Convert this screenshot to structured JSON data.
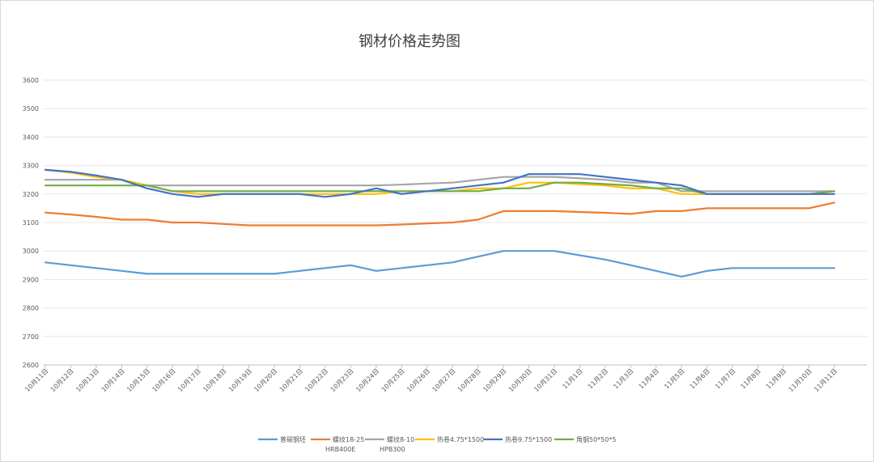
{
  "chart_data": {
    "type": "line",
    "title": "钢材价格走势图",
    "xlabel": "",
    "ylabel": "",
    "ylim": [
      2600,
      3600
    ],
    "yticks": [
      2600,
      2700,
      2800,
      2900,
      3000,
      3100,
      3200,
      3300,
      3400,
      3500,
      3600
    ],
    "grid": true,
    "legend_position": "bottom",
    "categories": [
      "10月11日",
      "10月12日",
      "10月13日",
      "10月14日",
      "10月15日",
      "10月16日",
      "10月17日",
      "10月18日",
      "10月19日",
      "10月20日",
      "10月21日",
      "10月22日",
      "10月23日",
      "10月24日",
      "10月25日",
      "10月26日",
      "10月27日",
      "10月28日",
      "10月29日",
      "10月30日",
      "10月31日",
      "11月1日",
      "11月2日",
      "11月3日",
      "11月4日",
      "11月5日",
      "11月6日",
      "11月7日",
      "11月8日",
      "11月9日",
      "11月10日",
      "11月11日"
    ],
    "series": [
      {
        "name": "普碳钢坯",
        "name_line2": "",
        "color": "#5b9bd5",
        "values": [
          2960,
          2950,
          2940,
          2930,
          2920,
          2920,
          2920,
          2920,
          2920,
          2920,
          2930,
          2940,
          2950,
          2930,
          2940,
          2950,
          2960,
          2980,
          3000,
          3000,
          3000,
          2985,
          2970,
          2950,
          2930,
          2910,
          2930,
          2940,
          2940,
          2940,
          2940,
          2940
        ]
      },
      {
        "name": "螺纹18-25",
        "name_line2": "HRB400E",
        "color": "#ed7d31",
        "values": [
          3135,
          3128,
          3120,
          3110,
          3110,
          3100,
          3100,
          3095,
          3090,
          3090,
          3090,
          3090,
          3090,
          3090,
          3093,
          3097,
          3100,
          3110,
          3140,
          3140,
          3140,
          3137,
          3134,
          3130,
          3140,
          3140,
          3150,
          3150,
          3150,
          3150,
          3150,
          3170
        ]
      },
      {
        "name": "螺纹8-10",
        "name_line2": "HPB300",
        "color": "#a5a5a5",
        "values": [
          3250,
          3250,
          3250,
          3250,
          3230,
          3230,
          3230,
          3230,
          3230,
          3230,
          3230,
          3230,
          3230,
          3230,
          3233,
          3237,
          3240,
          3250,
          3260,
          3260,
          3260,
          3255,
          3250,
          3240,
          3240,
          3210,
          3210,
          3210,
          3210,
          3210,
          3210,
          3210
        ]
      },
      {
        "name": "热卷4.75*1500",
        "name_line2": "",
        "color": "#ffc000",
        "values": [
          3285,
          3275,
          3260,
          3250,
          3230,
          3210,
          3200,
          3200,
          3200,
          3200,
          3200,
          3200,
          3200,
          3200,
          3210,
          3210,
          3210,
          3220,
          3220,
          3240,
          3240,
          3235,
          3230,
          3220,
          3220,
          3200,
          3200,
          3200,
          3200,
          3200,
          3200,
          3200
        ]
      },
      {
        "name": "热卷9.75*1500",
        "name_line2": "",
        "color": "#4472c4",
        "values": [
          3285,
          3278,
          3265,
          3250,
          3220,
          3200,
          3190,
          3200,
          3200,
          3200,
          3200,
          3190,
          3200,
          3220,
          3200,
          3210,
          3220,
          3230,
          3240,
          3270,
          3270,
          3270,
          3260,
          3250,
          3240,
          3230,
          3200,
          3200,
          3200,
          3200,
          3200,
          3200
        ]
      },
      {
        "name": "角钢50*50*5",
        "name_line2": "",
        "color": "#70ad47",
        "values": [
          3230,
          3230,
          3230,
          3230,
          3230,
          3210,
          3210,
          3210,
          3210,
          3210,
          3210,
          3210,
          3210,
          3210,
          3210,
          3210,
          3210,
          3210,
          3220,
          3220,
          3240,
          3240,
          3235,
          3230,
          3220,
          3220,
          3200,
          3200,
          3200,
          3200,
          3200,
          3210
        ]
      }
    ]
  }
}
